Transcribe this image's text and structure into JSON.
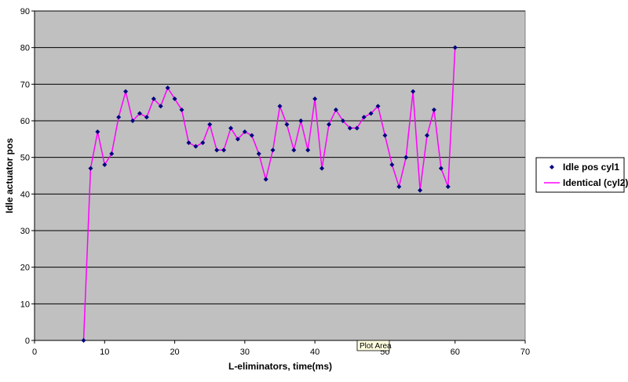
{
  "chart_data": {
    "type": "line",
    "title": "",
    "xlabel": "L-eliminators, time(ms)",
    "ylabel": "Idle actuator pos",
    "xlim": [
      0,
      70
    ],
    "ylim": [
      0,
      90
    ],
    "xticks": [
      0,
      10,
      20,
      30,
      40,
      50,
      60,
      70
    ],
    "yticks": [
      0,
      10,
      20,
      30,
      40,
      50,
      60,
      70,
      80,
      90
    ],
    "grid": "horizontal",
    "legend_position": "right",
    "plot_background": "#c0c0c0",
    "series": [
      {
        "name": "Idle pos cyl1",
        "style": "markers",
        "marker": "diamond",
        "color": "#000080",
        "x": [
          7,
          8,
          9,
          10,
          11,
          12,
          13,
          14,
          15,
          16,
          17,
          18,
          19,
          20,
          21,
          22,
          23,
          24,
          25,
          26,
          27,
          28,
          29,
          30,
          31,
          32,
          33,
          34,
          35,
          36,
          37,
          38,
          39,
          40,
          41,
          42,
          43,
          44,
          45,
          46,
          47,
          48,
          49,
          50,
          51,
          52,
          53,
          54,
          55,
          56,
          57,
          58,
          59,
          60
        ],
        "y": [
          0,
          47,
          57,
          48,
          51,
          61,
          68,
          60,
          62,
          61,
          66,
          64,
          69,
          66,
          63,
          54,
          53,
          54,
          59,
          52,
          52,
          58,
          55,
          57,
          56,
          51,
          44,
          52,
          64,
          59,
          52,
          60,
          52,
          66,
          47,
          59,
          63,
          60,
          58,
          58,
          61,
          62,
          64,
          56,
          48,
          42,
          50,
          68,
          41,
          56,
          63,
          47,
          42,
          80
        ]
      },
      {
        "name": "Identical (cyl2)",
        "style": "line",
        "color": "#ff00ff",
        "x": [
          7,
          8,
          9,
          10,
          11,
          12,
          13,
          14,
          15,
          16,
          17,
          18,
          19,
          20,
          21,
          22,
          23,
          24,
          25,
          26,
          27,
          28,
          29,
          30,
          31,
          32,
          33,
          34,
          35,
          36,
          37,
          38,
          39,
          40,
          41,
          42,
          43,
          44,
          45,
          46,
          47,
          48,
          49,
          50,
          51,
          52,
          53,
          54,
          55,
          56,
          57,
          58,
          59,
          60
        ],
        "y": [
          0,
          47,
          57,
          48,
          51,
          61,
          68,
          60,
          62,
          61,
          66,
          64,
          69,
          66,
          63,
          54,
          53,
          54,
          59,
          52,
          52,
          58,
          55,
          57,
          56,
          51,
          44,
          52,
          64,
          59,
          52,
          60,
          52,
          66,
          47,
          59,
          63,
          60,
          58,
          58,
          61,
          62,
          64,
          56,
          48,
          42,
          50,
          68,
          41,
          56,
          63,
          47,
          42,
          80
        ]
      }
    ]
  },
  "tooltip": {
    "label": "Plot Area"
  }
}
